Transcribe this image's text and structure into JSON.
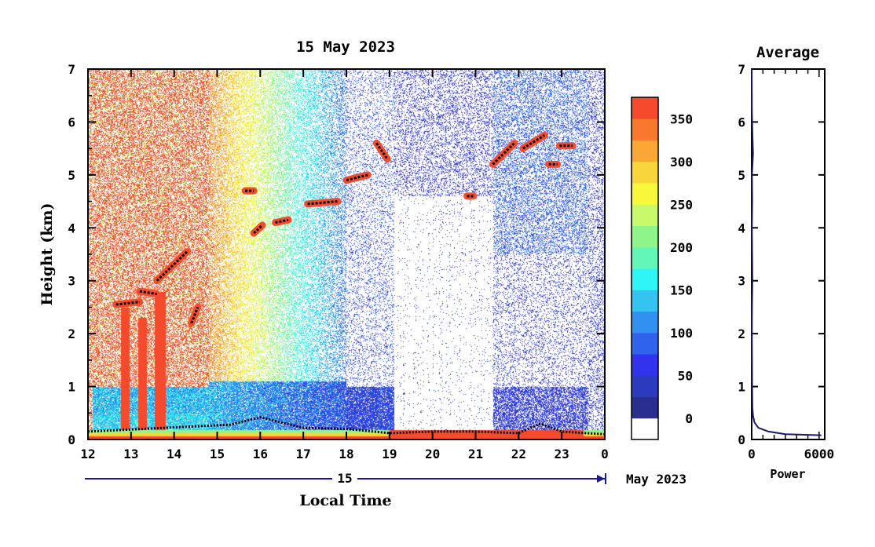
{
  "chart_data": [
    {
      "type": "heatmap",
      "title": "15 May 2023",
      "xlabel": "Local Time",
      "ylabel": "Height (km)",
      "date_axis": {
        "day_label": "15",
        "month_label": "May 2023"
      },
      "x_ticks": [
        "12",
        "13",
        "14",
        "15",
        "16",
        "17",
        "18",
        "19",
        "20",
        "21",
        "22",
        "23",
        "0"
      ],
      "y_ticks": [
        "0",
        "1",
        "2",
        "3",
        "4",
        "5",
        "6",
        "7"
      ],
      "xlim": [
        12,
        24
      ],
      "ylim": [
        0,
        7
      ],
      "colorbar": {
        "ticks": [
          "0",
          "50",
          "100",
          "150",
          "200",
          "250",
          "300",
          "350"
        ],
        "range": [
          -25,
          375
        ],
        "colors": [
          "#ffffff",
          "#2a2f8f",
          "#2c3bbd",
          "#3333ee",
          "#2f63ee",
          "#3291f0",
          "#33c4f2",
          "#2ff5f5",
          "#62f7b9",
          "#8ff58a",
          "#c9f86a",
          "#f8f83a",
          "#f9d53c",
          "#f9a836",
          "#f8782d",
          "#f64a2c"
        ]
      },
      "boundary_layer": [
        {
          "t": 12.0,
          "h": 0.15
        },
        {
          "t": 15.3,
          "h": 0.28
        },
        {
          "t": 16.0,
          "h": 0.42
        },
        {
          "t": 16.5,
          "h": 0.32
        },
        {
          "t": 17.0,
          "h": 0.22
        },
        {
          "t": 18.0,
          "h": 0.2
        },
        {
          "t": 19.0,
          "h": 0.12
        },
        {
          "t": 20.0,
          "h": 0.15
        },
        {
          "t": 21.0,
          "h": 0.15
        },
        {
          "t": 22.0,
          "h": 0.12
        },
        {
          "t": 22.5,
          "h": 0.3
        },
        {
          "t": 23.0,
          "h": 0.15
        },
        {
          "t": 24.0,
          "h": 0.1
        }
      ],
      "cloud_layers": [
        {
          "t0": 12.65,
          "t1": 13.2,
          "h0": 2.55,
          "h1": 2.6
        },
        {
          "t0": 13.2,
          "t1": 13.6,
          "h0": 2.8,
          "h1": 2.75
        },
        {
          "t0": 13.6,
          "t1": 14.3,
          "h0": 3.0,
          "h1": 3.55
        },
        {
          "t0": 14.4,
          "t1": 14.55,
          "h0": 2.2,
          "h1": 2.5
        },
        {
          "t0": 15.65,
          "t1": 15.85,
          "h0": 4.7,
          "h1": 4.7
        },
        {
          "t0": 15.85,
          "t1": 16.05,
          "h0": 3.9,
          "h1": 4.05
        },
        {
          "t0": 16.35,
          "t1": 16.65,
          "h0": 4.1,
          "h1": 4.15
        },
        {
          "t0": 17.1,
          "t1": 17.8,
          "h0": 4.45,
          "h1": 4.5
        },
        {
          "t0": 18.0,
          "t1": 18.5,
          "h0": 4.9,
          "h1": 5.0
        },
        {
          "t0": 18.7,
          "t1": 18.95,
          "h0": 5.6,
          "h1": 5.3
        },
        {
          "t0": 20.8,
          "t1": 20.95,
          "h0": 4.6,
          "h1": 4.6
        },
        {
          "t0": 21.4,
          "t1": 21.9,
          "h0": 5.2,
          "h1": 5.6
        },
        {
          "t0": 22.1,
          "t1": 22.6,
          "h0": 5.5,
          "h1": 5.75
        },
        {
          "t0": 22.7,
          "t1": 22.9,
          "h0": 5.2,
          "h1": 5.2
        },
        {
          "t0": 22.95,
          "t1": 23.25,
          "h0": 5.55,
          "h1": 5.55
        }
      ]
    },
    {
      "type": "line",
      "title": "Average",
      "xlabel": "Power",
      "x_ticks": [
        "0",
        "6000"
      ],
      "y_ticks": [
        "0",
        "1",
        "2",
        "3",
        "4",
        "5",
        "6",
        "7"
      ],
      "xlim": [
        0,
        6500
      ],
      "ylim": [
        0,
        7
      ],
      "profile": [
        {
          "x": 6200,
          "y": 0.08
        },
        {
          "x": 3000,
          "y": 0.1
        },
        {
          "x": 1500,
          "y": 0.15
        },
        {
          "x": 600,
          "y": 0.22
        },
        {
          "x": 250,
          "y": 0.32
        },
        {
          "x": 120,
          "y": 0.45
        },
        {
          "x": 60,
          "y": 0.6
        },
        {
          "x": 40,
          "y": 1.0
        },
        {
          "x": 20,
          "y": 2.0
        },
        {
          "x": 30,
          "y": 2.5
        },
        {
          "x": 60,
          "y": 3.0
        },
        {
          "x": 40,
          "y": 3.5
        },
        {
          "x": 20,
          "y": 4.0
        },
        {
          "x": 50,
          "y": 4.5
        },
        {
          "x": 30,
          "y": 5.0
        },
        {
          "x": 120,
          "y": 5.4
        },
        {
          "x": 80,
          "y": 5.7
        },
        {
          "x": 20,
          "y": 6.2
        },
        {
          "x": 10,
          "y": 7.0
        }
      ]
    }
  ]
}
